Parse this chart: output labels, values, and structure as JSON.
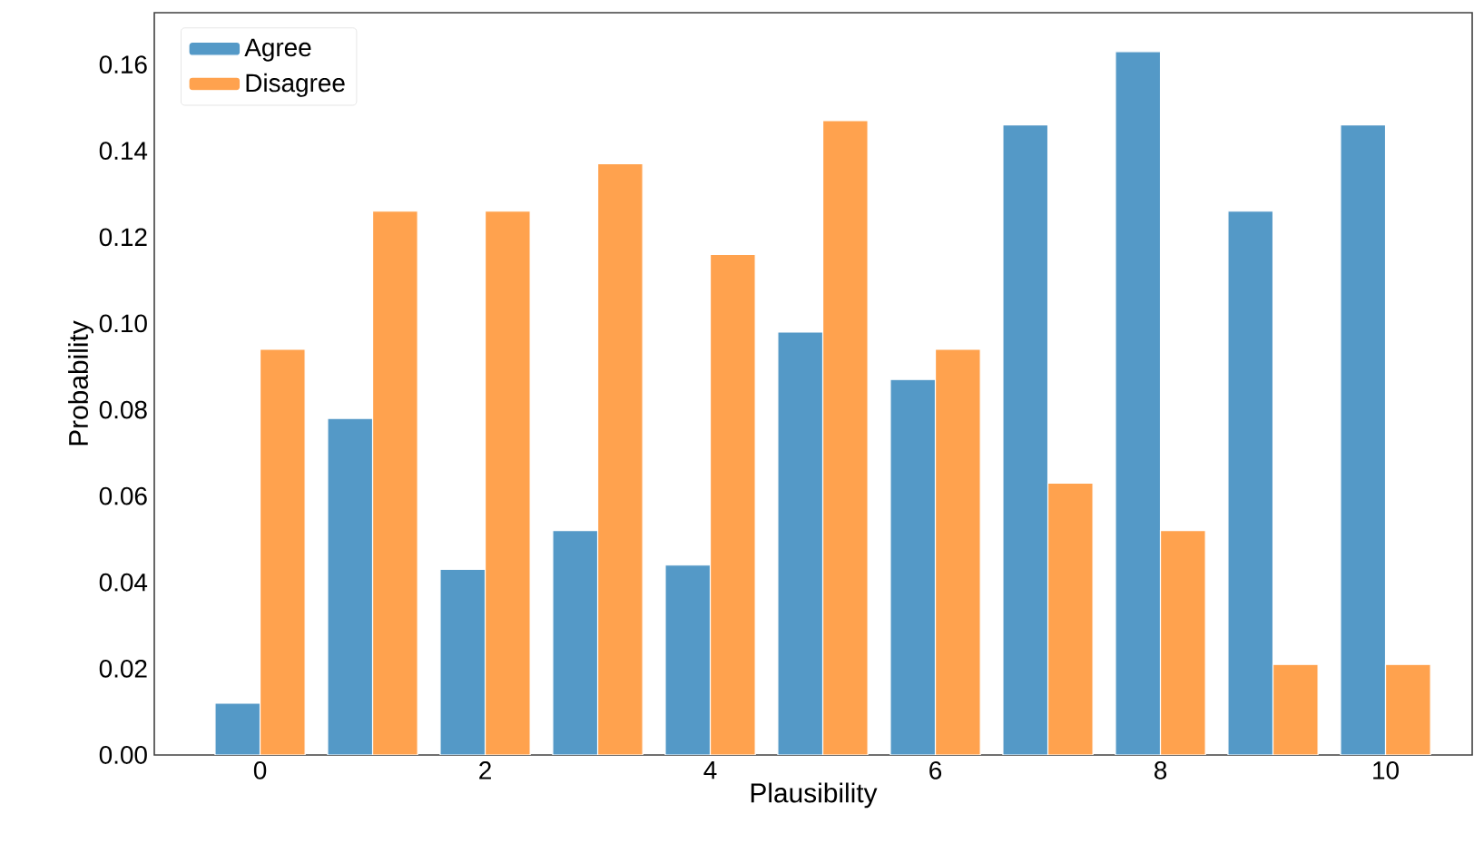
{
  "chart_data": {
    "type": "bar",
    "xlabel": "Plausibility",
    "ylabel": "Probability",
    "x": [
      0,
      1,
      2,
      3,
      4,
      5,
      6,
      7,
      8,
      9,
      10
    ],
    "series": [
      {
        "name": "Agree",
        "color": "#5499c7",
        "values": [
          0.012,
          0.078,
          0.043,
          0.052,
          0.044,
          0.098,
          0.087,
          0.146,
          0.163,
          0.126,
          0.146
        ]
      },
      {
        "name": "Disagree",
        "color": "#ffa24e",
        "values": [
          0.094,
          0.126,
          0.126,
          0.137,
          0.116,
          0.147,
          0.094,
          0.063,
          0.052,
          0.021,
          0.021
        ]
      }
    ],
    "xlim": [
      -0.94,
      10.77
    ],
    "ylim": [
      0,
      0.172
    ],
    "xticks": [
      0,
      2,
      4,
      6,
      8,
      10
    ],
    "yticks": [
      {
        "value": 0,
        "label": "0.00"
      },
      {
        "value": 0.02,
        "label": "0.02"
      },
      {
        "value": 0.04,
        "label": "0.04"
      },
      {
        "value": 0.06,
        "label": "0.06"
      },
      {
        "value": 0.08,
        "label": "0.08"
      },
      {
        "value": 0.1,
        "label": "0.10"
      },
      {
        "value": 0.12,
        "label": "0.12"
      },
      {
        "value": 0.14,
        "label": "0.14"
      },
      {
        "value": 0.16,
        "label": "0.16"
      }
    ],
    "grid": false,
    "legend": "top left"
  }
}
